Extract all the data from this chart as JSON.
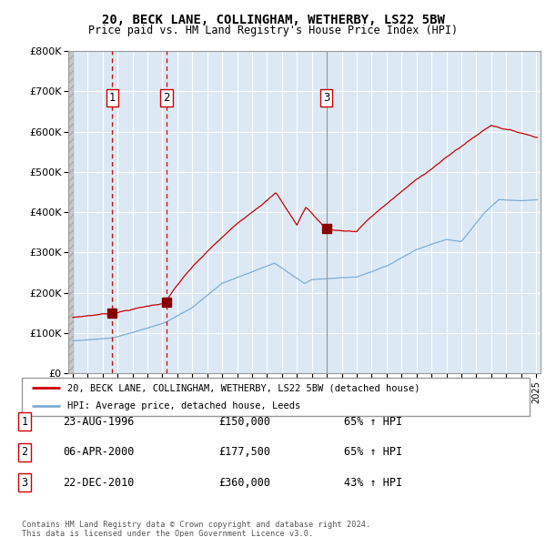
{
  "title": "20, BECK LANE, COLLINGHAM, WETHERBY, LS22 5BW",
  "subtitle": "Price paid vs. HM Land Registry's House Price Index (HPI)",
  "ylabel_ticks": [
    "£0",
    "£100K",
    "£200K",
    "£300K",
    "£400K",
    "£500K",
    "£600K",
    "£700K",
    "£800K"
  ],
  "ytick_values": [
    0,
    100000,
    200000,
    300000,
    400000,
    500000,
    600000,
    700000,
    800000
  ],
  "ylim": [
    0,
    800000
  ],
  "xlim_start": 1993.7,
  "xlim_end": 2025.3,
  "hatch_end": 1994.08,
  "sales": [
    {
      "date_num": 1996.64,
      "price": 150000,
      "label": "1"
    },
    {
      "date_num": 2000.27,
      "price": 177500,
      "label": "2"
    },
    {
      "date_num": 2010.98,
      "price": 360000,
      "label": "3"
    }
  ],
  "sale_table": [
    {
      "num": "1",
      "date": "23-AUG-1996",
      "price": "£150,000",
      "hpi": "65% ↑ HPI"
    },
    {
      "num": "2",
      "date": "06-APR-2000",
      "price": "£177,500",
      "hpi": "65% ↑ HPI"
    },
    {
      "num": "3",
      "date": "22-DEC-2010",
      "price": "£360,000",
      "hpi": "43% ↑ HPI"
    }
  ],
  "red_line_color": "#cc0000",
  "blue_line_color": "#7eadd4",
  "bg_color": "#dce9f5",
  "grid_color": "#ffffff",
  "sale_dot_color": "#880000",
  "dashed_line_color": "#cc0000",
  "solid_line_color": "#999999",
  "legend_line1": "20, BECK LANE, COLLINGHAM, WETHERBY, LS22 5BW (detached house)",
  "legend_line2": "HPI: Average price, detached house, Leeds",
  "footer1": "Contains HM Land Registry data © Crown copyright and database right 2024.",
  "footer2": "This data is licensed under the Open Government Licence v3.0."
}
